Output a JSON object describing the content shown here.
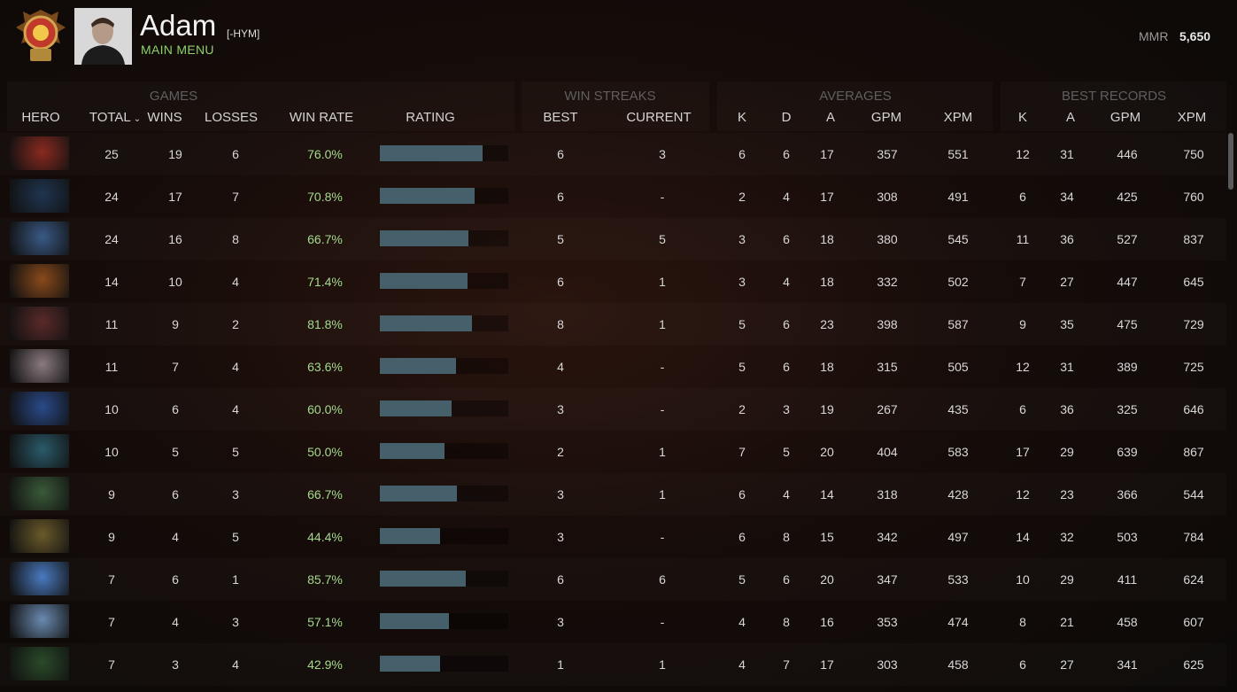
{
  "header": {
    "username": "Adam",
    "clan_tag": "[-HYM]",
    "status": "MAIN MENU",
    "mmr_label": "MMR",
    "mmr_value": "5,650"
  },
  "groups": {
    "games": "GAMES",
    "win_streaks": "WIN STREAKS",
    "averages": "AVERAGES",
    "best_records": "BEST RECORDS"
  },
  "columns": {
    "hero": "HERO",
    "total": "TOTAL",
    "wins": "WINS",
    "losses": "LOSSES",
    "win_rate": "WIN RATE",
    "rating": "RATING",
    "best": "BEST",
    "current": "CURRENT",
    "avg_k": "K",
    "avg_d": "D",
    "avg_a": "A",
    "avg_gpm": "GPM",
    "avg_xpm": "XPM",
    "rec_k": "K",
    "rec_a": "A",
    "rec_gpm": "GPM",
    "rec_xpm": "XPM"
  },
  "colors": {
    "win_rate_text": "#a6d98e",
    "rating_bar": "#45606b",
    "status_text": "#8fd06b"
  },
  "rows": [
    {
      "hero_icon": "hero-portrait-icon",
      "hero_color": "#8a2a20",
      "total": "25",
      "wins": "19",
      "losses": "6",
      "win_rate": "76.0%",
      "rating": 0.8,
      "best": "6",
      "current": "3",
      "k": "6",
      "d": "6",
      "a": "17",
      "gpm": "357",
      "xpm": "551",
      "rk": "12",
      "ra": "31",
      "rgpm": "446",
      "rxpm": "750"
    },
    {
      "hero_icon": "hero-portrait-icon",
      "hero_color": "#1f3550",
      "total": "24",
      "wins": "17",
      "losses": "7",
      "win_rate": "70.8%",
      "rating": 0.74,
      "best": "6",
      "current": "-",
      "k": "2",
      "d": "4",
      "a": "17",
      "gpm": "308",
      "xpm": "491",
      "rk": "6",
      "ra": "34",
      "rgpm": "425",
      "rxpm": "760"
    },
    {
      "hero_icon": "hero-portrait-icon",
      "hero_color": "#3a5a86",
      "total": "24",
      "wins": "16",
      "losses": "8",
      "win_rate": "66.7%",
      "rating": 0.69,
      "best": "5",
      "current": "5",
      "k": "3",
      "d": "6",
      "a": "18",
      "gpm": "380",
      "xpm": "545",
      "rk": "11",
      "ra": "36",
      "rgpm": "527",
      "rxpm": "837"
    },
    {
      "hero_icon": "hero-portrait-icon",
      "hero_color": "#8a4a1a",
      "total": "14",
      "wins": "10",
      "losses": "4",
      "win_rate": "71.4%",
      "rating": 0.68,
      "best": "6",
      "current": "1",
      "k": "3",
      "d": "4",
      "a": "18",
      "gpm": "332",
      "xpm": "502",
      "rk": "7",
      "ra": "27",
      "rgpm": "447",
      "rxpm": "645"
    },
    {
      "hero_icon": "hero-portrait-icon",
      "hero_color": "#5a2a2a",
      "total": "11",
      "wins": "9",
      "losses": "2",
      "win_rate": "81.8%",
      "rating": 0.72,
      "best": "8",
      "current": "1",
      "k": "5",
      "d": "6",
      "a": "23",
      "gpm": "398",
      "xpm": "587",
      "rk": "9",
      "ra": "35",
      "rgpm": "475",
      "rxpm": "729"
    },
    {
      "hero_icon": "hero-portrait-icon",
      "hero_color": "#8a7a80",
      "total": "11",
      "wins": "7",
      "losses": "4",
      "win_rate": "63.6%",
      "rating": 0.59,
      "best": "4",
      "current": "-",
      "k": "5",
      "d": "6",
      "a": "18",
      "gpm": "315",
      "xpm": "505",
      "rk": "12",
      "ra": "31",
      "rgpm": "389",
      "rxpm": "725"
    },
    {
      "hero_icon": "hero-portrait-icon",
      "hero_color": "#2a4a8a",
      "total": "10",
      "wins": "6",
      "losses": "4",
      "win_rate": "60.0%",
      "rating": 0.56,
      "best": "3",
      "current": "-",
      "k": "2",
      "d": "3",
      "a": "19",
      "gpm": "267",
      "xpm": "435",
      "rk": "6",
      "ra": "36",
      "rgpm": "325",
      "rxpm": "646"
    },
    {
      "hero_icon": "hero-portrait-icon",
      "hero_color": "#2a5a6a",
      "total": "10",
      "wins": "5",
      "losses": "5",
      "win_rate": "50.0%",
      "rating": 0.5,
      "best": "2",
      "current": "1",
      "k": "7",
      "d": "5",
      "a": "20",
      "gpm": "404",
      "xpm": "583",
      "rk": "17",
      "ra": "29",
      "rgpm": "639",
      "rxpm": "867"
    },
    {
      "hero_icon": "hero-portrait-icon",
      "hero_color": "#3a5a3a",
      "total": "9",
      "wins": "6",
      "losses": "3",
      "win_rate": "66.7%",
      "rating": 0.6,
      "best": "3",
      "current": "1",
      "k": "6",
      "d": "4",
      "a": "14",
      "gpm": "318",
      "xpm": "428",
      "rk": "12",
      "ra": "23",
      "rgpm": "366",
      "rxpm": "544"
    },
    {
      "hero_icon": "hero-portrait-icon",
      "hero_color": "#6a5a2a",
      "total": "9",
      "wins": "4",
      "losses": "5",
      "win_rate": "44.4%",
      "rating": 0.47,
      "best": "3",
      "current": "-",
      "k": "6",
      "d": "8",
      "a": "15",
      "gpm": "342",
      "xpm": "497",
      "rk": "14",
      "ra": "32",
      "rgpm": "503",
      "rxpm": "784"
    },
    {
      "hero_icon": "hero-portrait-icon",
      "hero_color": "#4a7ac0",
      "total": "7",
      "wins": "6",
      "losses": "1",
      "win_rate": "85.7%",
      "rating": 0.67,
      "best": "6",
      "current": "6",
      "k": "5",
      "d": "6",
      "a": "20",
      "gpm": "347",
      "xpm": "533",
      "rk": "10",
      "ra": "29",
      "rgpm": "411",
      "rxpm": "624"
    },
    {
      "hero_icon": "hero-portrait-icon",
      "hero_color": "#6a8ab0",
      "total": "7",
      "wins": "4",
      "losses": "3",
      "win_rate": "57.1%",
      "rating": 0.54,
      "best": "3",
      "current": "-",
      "k": "4",
      "d": "8",
      "a": "16",
      "gpm": "353",
      "xpm": "474",
      "rk": "8",
      "ra": "21",
      "rgpm": "458",
      "rxpm": "607"
    },
    {
      "hero_icon": "hero-portrait-icon",
      "hero_color": "#2a4a2a",
      "total": "7",
      "wins": "3",
      "losses": "4",
      "win_rate": "42.9%",
      "rating": 0.47,
      "best": "1",
      "current": "1",
      "k": "4",
      "d": "7",
      "a": "17",
      "gpm": "303",
      "xpm": "458",
      "rk": "6",
      "ra": "27",
      "rgpm": "341",
      "rxpm": "625"
    }
  ]
}
